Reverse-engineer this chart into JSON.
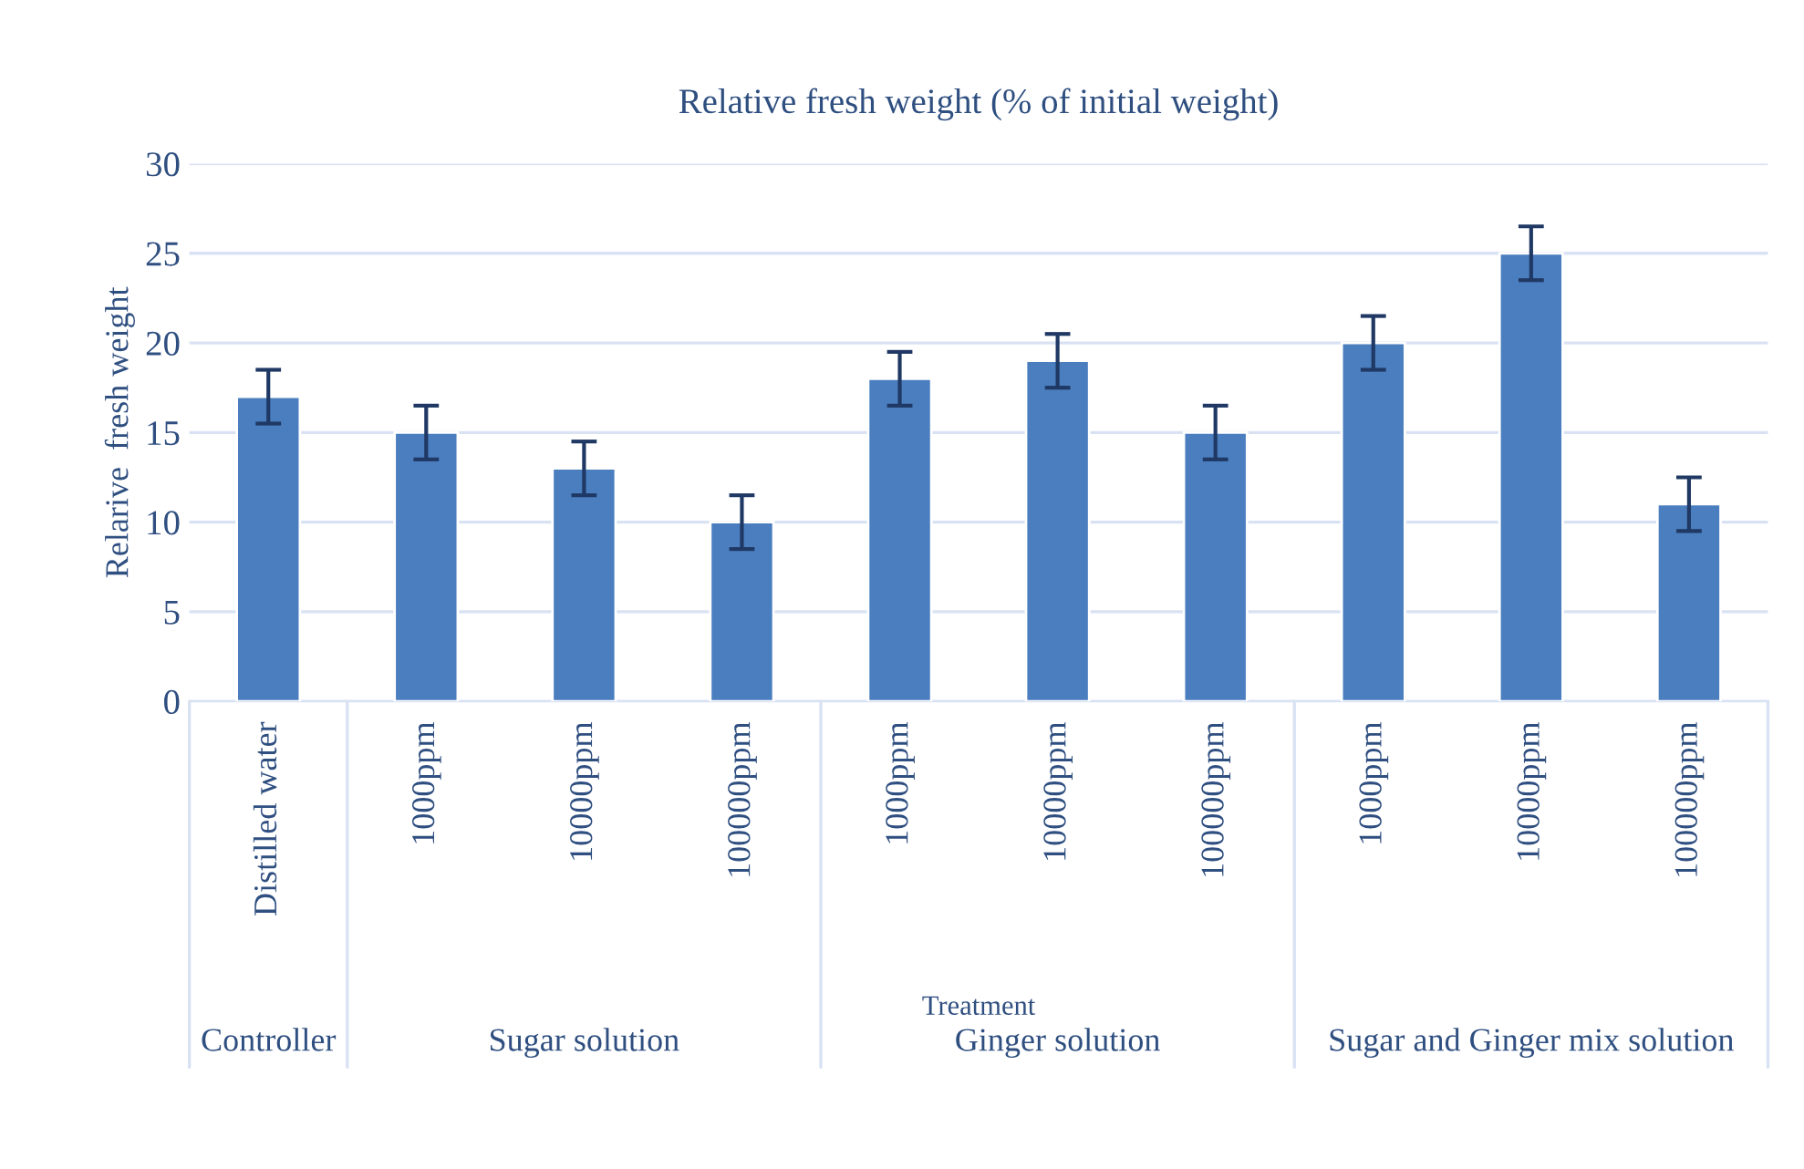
{
  "chart_data": {
    "type": "bar",
    "title": "Relative fresh weight (% of initial weight)",
    "xlabel": "Treatment",
    "ylabel": "Relarive  fresh weight",
    "categories": [
      "Distilled water",
      "1000ppm",
      "10000ppm",
      "100000ppm",
      "1000ppm",
      "10000ppm",
      "100000ppm",
      "1000ppm",
      "10000ppm",
      "100000ppm"
    ],
    "series": [
      {
        "color": "#4a7ebf",
        "values": [
          17,
          15,
          13,
          10,
          18,
          19,
          15,
          20,
          25,
          11
        ],
        "errors": [
          1.5,
          1.5,
          1.5,
          1.5,
          1.5,
          1.5,
          1.5,
          1.5,
          1.5,
          1.5
        ]
      }
    ],
    "ylim": [
      0,
      30
    ],
    "yticks": [
      0,
      5,
      10,
      15,
      20,
      25,
      30
    ],
    "grid": "y",
    "annotations": [
      "Controller",
      "Sugar solution",
      "Ginger solution",
      "Sugar and Ginger mix solution"
    ]
  }
}
